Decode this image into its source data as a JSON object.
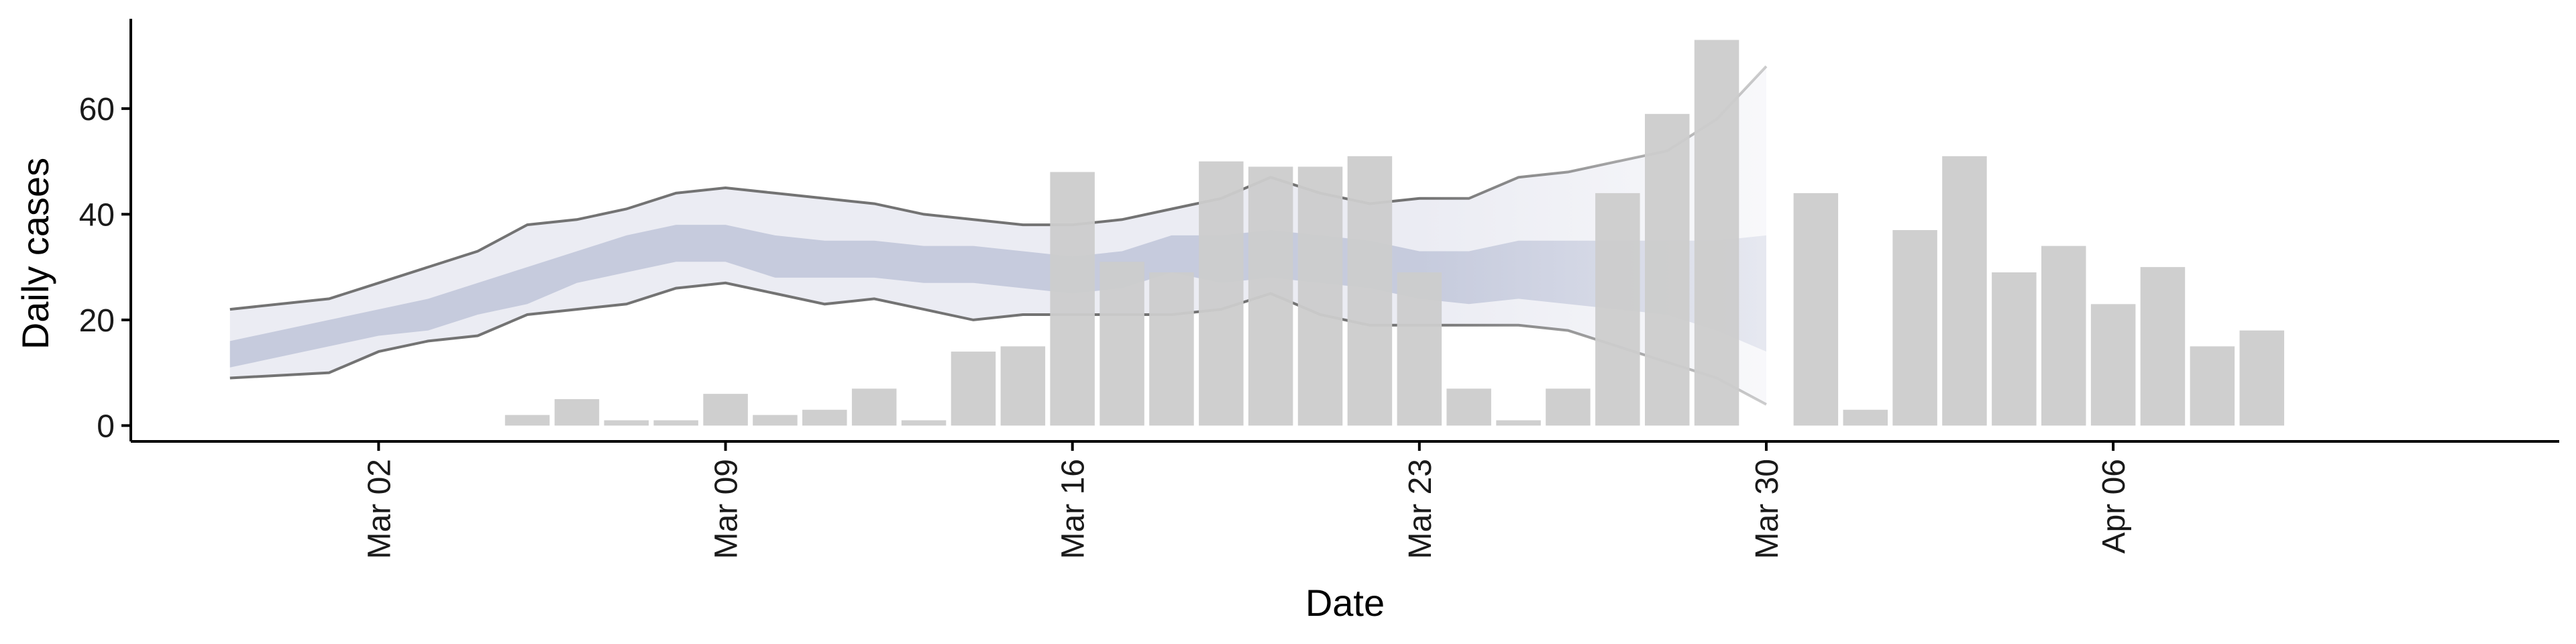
{
  "chart_data": {
    "type": "bar",
    "title": "",
    "xlabel": "Date",
    "ylabel": "Daily cases",
    "x_axis": {
      "type": "date",
      "range": [
        "2020-02-26",
        "2020-04-15"
      ],
      "ticks": [
        {
          "date": "2020-03-02",
          "label": "Mar 02"
        },
        {
          "date": "2020-03-09",
          "label": "Mar 09"
        },
        {
          "date": "2020-03-16",
          "label": "Mar 16"
        },
        {
          "date": "2020-03-23",
          "label": "Mar 23"
        },
        {
          "date": "2020-03-30",
          "label": "Mar 30"
        },
        {
          "date": "2020-04-06",
          "label": "Apr 06"
        }
      ]
    },
    "y_axis": {
      "range": [
        -3,
        77
      ],
      "ticks": [
        0,
        20,
        40,
        60
      ]
    },
    "grid": false,
    "legend": "none",
    "colors": {
      "bars": "#cccccc",
      "outer_band": "#ebecf3",
      "inner_band": "#c6cbdd",
      "band_edge": "#737373",
      "axis": "#000000"
    },
    "bars": {
      "dates": [
        "2020-03-05",
        "2020-03-06",
        "2020-03-07",
        "2020-03-08",
        "2020-03-09",
        "2020-03-10",
        "2020-03-11",
        "2020-03-12",
        "2020-03-13",
        "2020-03-14",
        "2020-03-15",
        "2020-03-16",
        "2020-03-17",
        "2020-03-18",
        "2020-03-19",
        "2020-03-20",
        "2020-03-21",
        "2020-03-22",
        "2020-03-23",
        "2020-03-24",
        "2020-03-25",
        "2020-03-26",
        "2020-03-27",
        "2020-03-28",
        "2020-03-29",
        "2020-03-31",
        "2020-04-01",
        "2020-04-02",
        "2020-04-03",
        "2020-04-04",
        "2020-04-05",
        "2020-04-06",
        "2020-04-07",
        "2020-04-08",
        "2020-04-09"
      ],
      "values": [
        2,
        5,
        1,
        1,
        6,
        2,
        3,
        7,
        1,
        14,
        15,
        48,
        31,
        29,
        50,
        49,
        49,
        51,
        29,
        7,
        1,
        7,
        44,
        59,
        73,
        44,
        3,
        37,
        51,
        29,
        34,
        23,
        30,
        15,
        18
      ]
    },
    "ribbons": {
      "dates": [
        "2020-02-28",
        "2020-03-01",
        "2020-03-02",
        "2020-03-03",
        "2020-03-04",
        "2020-03-05",
        "2020-03-06",
        "2020-03-07",
        "2020-03-08",
        "2020-03-09",
        "2020-03-10",
        "2020-03-11",
        "2020-03-12",
        "2020-03-13",
        "2020-03-14",
        "2020-03-15",
        "2020-03-16",
        "2020-03-17",
        "2020-03-18",
        "2020-03-19",
        "2020-03-20",
        "2020-03-21",
        "2020-03-22",
        "2020-03-23",
        "2020-03-24",
        "2020-03-25",
        "2020-03-26",
        "2020-03-27",
        "2020-03-28",
        "2020-03-29",
        "2020-03-30",
        "2020-03-31"
      ],
      "outer_lower": [
        9,
        10,
        14,
        16,
        17,
        21,
        22,
        23,
        26,
        27,
        25,
        23,
        24,
        22,
        20,
        21,
        21,
        21,
        21,
        22,
        25,
        21,
        19,
        19,
        19,
        19,
        18,
        15,
        12,
        9,
        4
      ],
      "outer_upper": [
        22,
        24,
        27,
        30,
        33,
        38,
        39,
        41,
        44,
        45,
        44,
        43,
        42,
        40,
        39,
        38,
        38,
        39,
        41,
        43,
        47,
        44,
        42,
        43,
        43,
        47,
        48,
        50,
        52,
        58,
        68
      ],
      "inner_lower": [
        11,
        15,
        17,
        18,
        21,
        23,
        27,
        29,
        31,
        31,
        28,
        28,
        28,
        27,
        27,
        26,
        25,
        26,
        29,
        27,
        28,
        27,
        26,
        24,
        23,
        24,
        23,
        22,
        21,
        18,
        14
      ],
      "inner_upper": [
        16,
        20,
        22,
        24,
        27,
        30,
        33,
        36,
        38,
        38,
        36,
        35,
        35,
        34,
        34,
        33,
        32,
        33,
        36,
        36,
        37,
        36,
        35,
        33,
        33,
        35,
        35,
        35,
        35,
        35,
        36
      ],
      "dates_used": 31
    }
  }
}
